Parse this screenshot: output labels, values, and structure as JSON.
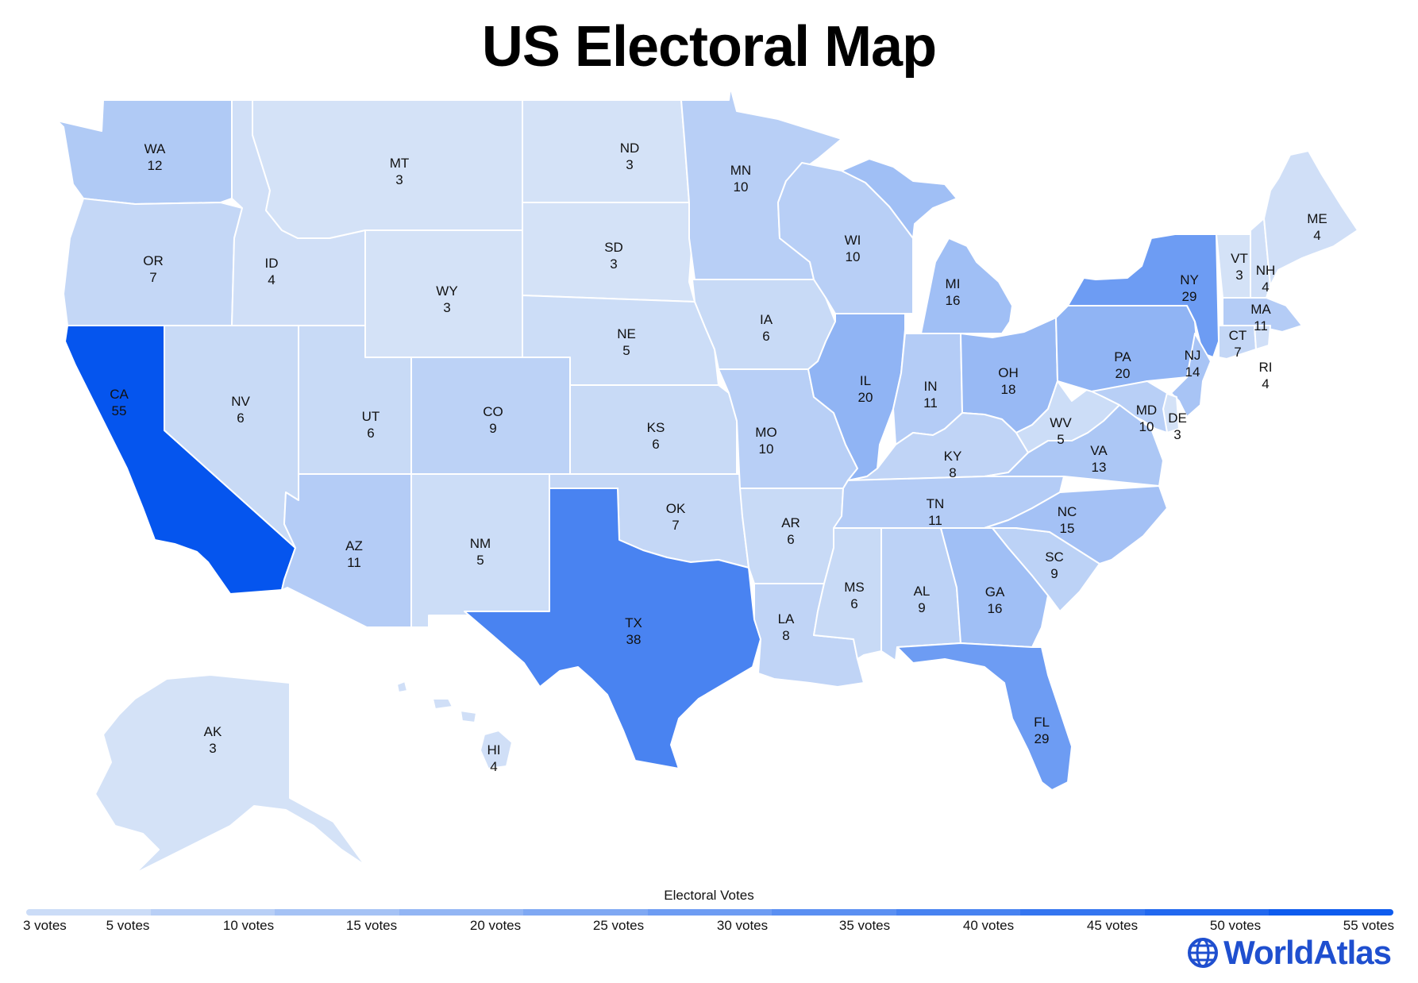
{
  "title": "US Electoral Map",
  "legend": {
    "title": "Electoral Votes",
    "ticks": [
      "3 votes",
      "5 votes",
      "10 votes",
      "15 votes",
      "20 votes",
      "25 votes",
      "30 votes",
      "35 votes",
      "40 votes",
      "45 votes",
      "50 votes",
      "55 votes"
    ]
  },
  "brand": {
    "name": "WorldAtlas",
    "icon": "globe-icon",
    "color": "#1f4fcf"
  },
  "colors": {
    "low": "#d4e2f7",
    "high": "#0555ee"
  },
  "states": [
    {
      "abbr": "WA",
      "votes": 12
    },
    {
      "abbr": "OR",
      "votes": 7
    },
    {
      "abbr": "CA",
      "votes": 55
    },
    {
      "abbr": "ID",
      "votes": 4
    },
    {
      "abbr": "NV",
      "votes": 6
    },
    {
      "abbr": "MT",
      "votes": 3
    },
    {
      "abbr": "WY",
      "votes": 3
    },
    {
      "abbr": "UT",
      "votes": 6
    },
    {
      "abbr": "AZ",
      "votes": 11
    },
    {
      "abbr": "CO",
      "votes": 9
    },
    {
      "abbr": "NM",
      "votes": 5
    },
    {
      "abbr": "ND",
      "votes": 3
    },
    {
      "abbr": "SD",
      "votes": 3
    },
    {
      "abbr": "NE",
      "votes": 5
    },
    {
      "abbr": "KS",
      "votes": 6
    },
    {
      "abbr": "OK",
      "votes": 7
    },
    {
      "abbr": "TX",
      "votes": 38
    },
    {
      "abbr": "MN",
      "votes": 10
    },
    {
      "abbr": "IA",
      "votes": 6
    },
    {
      "abbr": "MO",
      "votes": 10
    },
    {
      "abbr": "AR",
      "votes": 6
    },
    {
      "abbr": "LA",
      "votes": 8
    },
    {
      "abbr": "WI",
      "votes": 10
    },
    {
      "abbr": "IL",
      "votes": 20
    },
    {
      "abbr": "MI",
      "votes": 16
    },
    {
      "abbr": "IN",
      "votes": 11
    },
    {
      "abbr": "OH",
      "votes": 18
    },
    {
      "abbr": "KY",
      "votes": 8
    },
    {
      "abbr": "TN",
      "votes": 11
    },
    {
      "abbr": "MS",
      "votes": 6
    },
    {
      "abbr": "AL",
      "votes": 9
    },
    {
      "abbr": "GA",
      "votes": 16
    },
    {
      "abbr": "FL",
      "votes": 29
    },
    {
      "abbr": "SC",
      "votes": 9
    },
    {
      "abbr": "NC",
      "votes": 15
    },
    {
      "abbr": "VA",
      "votes": 13
    },
    {
      "abbr": "WV",
      "votes": 5
    },
    {
      "abbr": "PA",
      "votes": 20
    },
    {
      "abbr": "NY",
      "votes": 29
    },
    {
      "abbr": "VT",
      "votes": 3
    },
    {
      "abbr": "NH",
      "votes": 4
    },
    {
      "abbr": "ME",
      "votes": 4
    },
    {
      "abbr": "MA",
      "votes": 11
    },
    {
      "abbr": "CT",
      "votes": 7
    },
    {
      "abbr": "RI",
      "votes": 4
    },
    {
      "abbr": "NJ",
      "votes": 14
    },
    {
      "abbr": "DE",
      "votes": 3
    },
    {
      "abbr": "MD",
      "votes": 10
    },
    {
      "abbr": "AK",
      "votes": 3
    },
    {
      "abbr": "HI",
      "votes": 4
    }
  ]
}
